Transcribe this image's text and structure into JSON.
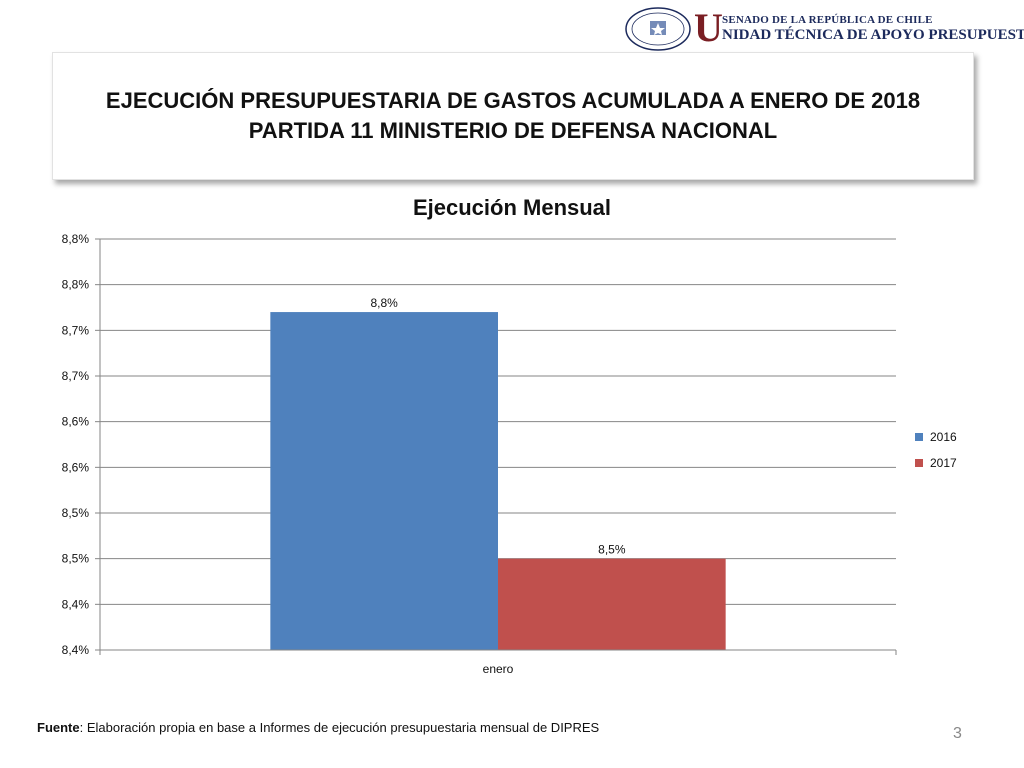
{
  "logo": {
    "seal_text_top": "REPÚBLICA DE CHILE",
    "seal_text_bottom": "SENADO",
    "big_letter": "U",
    "line1": "SENADO DE LA REPÚBLICA DE CHILE",
    "line2": "NIDAD TÉCNICA DE APOYO PRESUPUESTARIO"
  },
  "slide": {
    "title_line1": "EJECUCIÓN PRESUPUESTARIA DE GASTOS ACUMULADA A ENERO DE 2018",
    "title_line2": "PARTIDA 11 MINISTERIO DE DEFENSA NACIONAL",
    "source_label": "Fuente",
    "source_text": ": Elaboración propia en base  a Informes de ejecución presupuestaria mensual de DIPRES",
    "page_number": "3"
  },
  "chart_data": {
    "type": "bar",
    "title": "Ejecución Mensual",
    "categories": [
      "enero"
    ],
    "series": [
      {
        "name": "2016",
        "values": [
          8.77
        ],
        "label": "8,8%",
        "color": "#4f81bd"
      },
      {
        "name": "2017",
        "values": [
          8.5
        ],
        "label": "8,5%",
        "color": "#c0504d"
      }
    ],
    "ylim": [
      8.4,
      8.85
    ],
    "yticks": [
      8.4,
      8.45,
      8.5,
      8.55,
      8.6,
      8.65,
      8.7,
      8.75,
      8.8,
      8.85
    ],
    "ytick_labels": [
      "8,4%",
      "8,4%",
      "8,5%",
      "8,5%",
      "8,6%",
      "8,6%",
      "8,7%",
      "8,7%",
      "8,8%",
      "8,8%"
    ],
    "grid": true,
    "legend_position": "right",
    "xlabel": "",
    "ylabel": ""
  }
}
